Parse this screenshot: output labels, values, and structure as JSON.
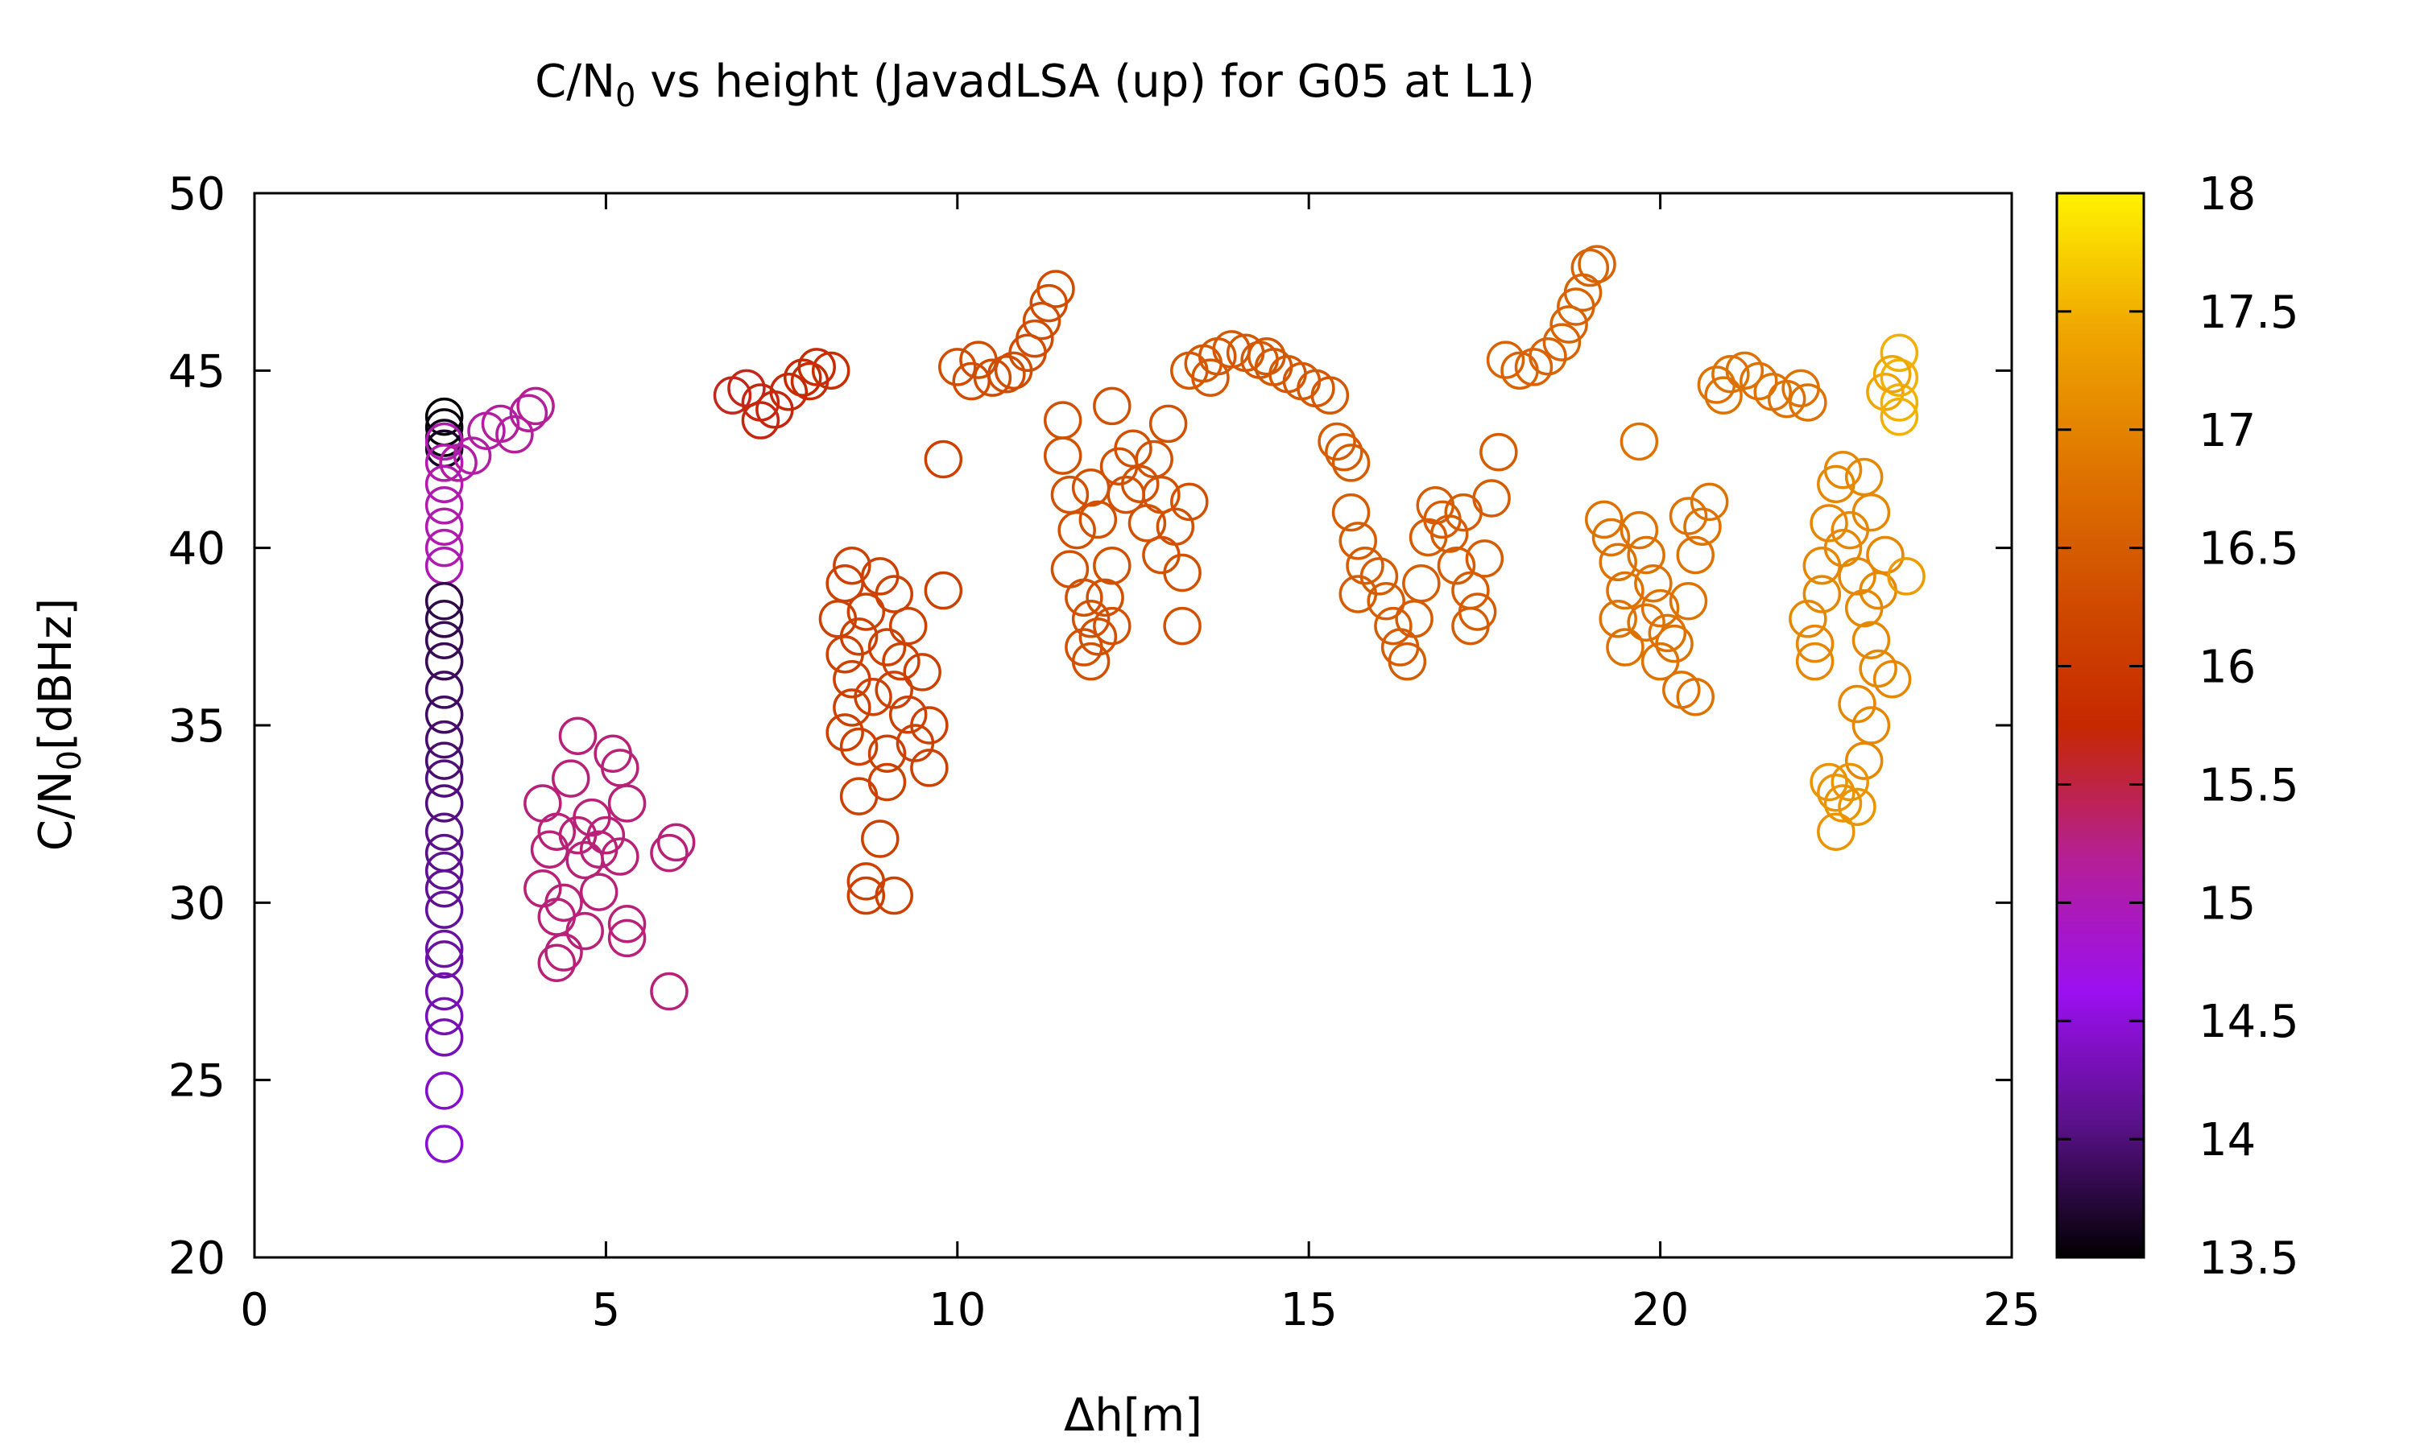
{
  "chart_data": {
    "type": "scatter",
    "title": "C/N",
    "title_sub": "0",
    "title_rest": " vs height (JavadLSA (up) for G05 at L1)",
    "xlabel": "Δh[m]",
    "ylabel": "C/N",
    "ylabel_sub": "0",
    "ylabel_rest": "[dBHz]",
    "xlim": [
      0,
      25
    ],
    "ylim": [
      20,
      50
    ],
    "xticks": [
      0,
      5,
      10,
      15,
      20,
      25
    ],
    "yticks": [
      20,
      25,
      30,
      35,
      40,
      45,
      50
    ],
    "marker": "open-circle",
    "grid": false,
    "colorbar": {
      "range": [
        13.5,
        18
      ],
      "ticks": [
        "13.5",
        "14",
        "14.5",
        "15",
        "15.5",
        "16",
        "16.5",
        "17",
        "17.5",
        "18"
      ],
      "colormap": [
        "#000000",
        "#5a1189",
        "#9b10f0",
        "#b51f96",
        "#c62800",
        "#d04e00",
        "#e07800",
        "#f0a800",
        "#fff200"
      ]
    },
    "points": [
      [
        2.7,
        43.7,
        13.5
      ],
      [
        2.7,
        43.4,
        13.55
      ],
      [
        2.7,
        43.1,
        13.6
      ],
      [
        2.7,
        42.8,
        13.65
      ],
      [
        2.7,
        40.0,
        15.05
      ],
      [
        2.7,
        40.6,
        15.05
      ],
      [
        2.7,
        41.2,
        15.05
      ],
      [
        2.7,
        41.8,
        15.05
      ],
      [
        2.7,
        42.4,
        15.05
      ],
      [
        2.7,
        43.0,
        15.05
      ],
      [
        2.7,
        39.5,
        15.0
      ],
      [
        2.7,
        38.5,
        13.8
      ],
      [
        2.7,
        38.0,
        13.8
      ],
      [
        2.7,
        37.4,
        13.85
      ],
      [
        2.7,
        36.8,
        13.85
      ],
      [
        2.7,
        36.0,
        13.9
      ],
      [
        2.7,
        35.3,
        13.9
      ],
      [
        2.7,
        34.6,
        13.95
      ],
      [
        2.7,
        34.0,
        13.95
      ],
      [
        2.7,
        33.5,
        14.0
      ],
      [
        2.7,
        32.8,
        14.0
      ],
      [
        2.7,
        32.0,
        14.05
      ],
      [
        2.7,
        31.4,
        14.05
      ],
      [
        2.7,
        30.9,
        14.1
      ],
      [
        2.7,
        30.4,
        14.1
      ],
      [
        2.7,
        29.8,
        14.15
      ],
      [
        2.7,
        28.7,
        14.2
      ],
      [
        2.7,
        28.4,
        14.2
      ],
      [
        2.7,
        27.5,
        14.25
      ],
      [
        2.7,
        26.8,
        14.3
      ],
      [
        2.7,
        26.2,
        14.3
      ],
      [
        2.7,
        24.7,
        14.4
      ],
      [
        2.7,
        23.2,
        14.45
      ],
      [
        2.9,
        42.4,
        15.1
      ],
      [
        3.1,
        42.6,
        15.1
      ],
      [
        3.3,
        43.3,
        15.1
      ],
      [
        3.5,
        43.5,
        15.15
      ],
      [
        3.7,
        43.2,
        15.15
      ],
      [
        3.9,
        43.8,
        15.15
      ],
      [
        4.0,
        44.0,
        15.2
      ],
      [
        4.6,
        34.7,
        15.3
      ],
      [
        4.5,
        33.5,
        15.3
      ],
      [
        5.1,
        34.2,
        15.3
      ],
      [
        5.2,
        33.8,
        15.3
      ],
      [
        4.1,
        32.8,
        15.3
      ],
      [
        4.3,
        32.0,
        15.3
      ],
      [
        4.8,
        32.4,
        15.3
      ],
      [
        5.0,
        31.9,
        15.3
      ],
      [
        5.3,
        32.8,
        15.3
      ],
      [
        4.2,
        31.5,
        15.3
      ],
      [
        4.7,
        31.2,
        15.3
      ],
      [
        5.2,
        31.3,
        15.3
      ],
      [
        4.1,
        30.4,
        15.3
      ],
      [
        4.4,
        30.0,
        15.3
      ],
      [
        4.9,
        30.3,
        15.3
      ],
      [
        4.3,
        29.6,
        15.3
      ],
      [
        4.7,
        29.2,
        15.3
      ],
      [
        5.3,
        29.4,
        15.3
      ],
      [
        5.3,
        29.0,
        15.3
      ],
      [
        4.4,
        28.6,
        15.3
      ],
      [
        4.3,
        28.3,
        15.3
      ],
      [
        5.9,
        31.4,
        15.3
      ],
      [
        6.0,
        31.7,
        15.3
      ],
      [
        5.9,
        27.5,
        15.3
      ],
      [
        4.9,
        31.5,
        15.3
      ],
      [
        4.6,
        31.9,
        15.3
      ],
      [
        6.8,
        44.3,
        15.65
      ],
      [
        7.0,
        44.5,
        15.65
      ],
      [
        7.2,
        44.1,
        15.7
      ],
      [
        7.2,
        43.6,
        15.7
      ],
      [
        7.4,
        43.9,
        15.7
      ],
      [
        7.6,
        44.4,
        15.75
      ],
      [
        7.8,
        44.8,
        15.75
      ],
      [
        8.0,
        45.1,
        15.8
      ],
      [
        7.9,
        44.7,
        15.8
      ],
      [
        8.2,
        45.0,
        15.85
      ],
      [
        8.3,
        38.0,
        16.1
      ],
      [
        8.4,
        39.0,
        16.1
      ],
      [
        8.5,
        39.5,
        16.1
      ],
      [
        8.7,
        38.2,
        16.1
      ],
      [
        8.9,
        39.2,
        16.1
      ],
      [
        9.1,
        38.7,
        16.1
      ],
      [
        8.4,
        37.0,
        16.1
      ],
      [
        8.6,
        37.5,
        16.1
      ],
      [
        9.0,
        37.2,
        16.1
      ],
      [
        9.3,
        37.8,
        16.1
      ],
      [
        9.5,
        36.5,
        16.1
      ],
      [
        8.5,
        36.3,
        16.1
      ],
      [
        8.8,
        35.8,
        16.1
      ],
      [
        9.1,
        36.0,
        16.1
      ],
      [
        9.3,
        35.3,
        16.1
      ],
      [
        9.6,
        35.0,
        16.1
      ],
      [
        8.4,
        34.8,
        16.1
      ],
      [
        8.6,
        34.4,
        16.1
      ],
      [
        9.0,
        34.2,
        16.1
      ],
      [
        9.4,
        34.5,
        16.1
      ],
      [
        9.6,
        33.8,
        16.1
      ],
      [
        8.6,
        33.0,
        16.1
      ],
      [
        9.0,
        33.4,
        16.1
      ],
      [
        8.9,
        31.8,
        16.1
      ],
      [
        8.7,
        30.6,
        16.1
      ],
      [
        8.7,
        30.2,
        16.1
      ],
      [
        9.1,
        30.2,
        16.1
      ],
      [
        9.8,
        38.8,
        16.1
      ],
      [
        9.8,
        42.5,
        16.1
      ],
      [
        8.5,
        35.5,
        16.1
      ],
      [
        9.2,
        36.8,
        16.1
      ],
      [
        10.0,
        45.1,
        16.3
      ],
      [
        10.3,
        45.3,
        16.3
      ],
      [
        10.5,
        44.8,
        16.3
      ],
      [
        10.8,
        45.0,
        16.3
      ],
      [
        11.0,
        45.5,
        16.3
      ],
      [
        11.1,
        45.9,
        16.3
      ],
      [
        11.2,
        46.4,
        16.3
      ],
      [
        11.3,
        46.9,
        16.3
      ],
      [
        11.4,
        47.3,
        16.3
      ],
      [
        10.2,
        44.7,
        16.3
      ],
      [
        10.7,
        44.9,
        16.3
      ],
      [
        11.5,
        43.6,
        16.35
      ],
      [
        11.5,
        42.6,
        16.35
      ],
      [
        11.6,
        41.5,
        16.35
      ],
      [
        11.7,
        40.5,
        16.35
      ],
      [
        11.6,
        39.4,
        16.35
      ],
      [
        11.8,
        38.6,
        16.35
      ],
      [
        11.9,
        38.0,
        16.35
      ],
      [
        12.0,
        37.5,
        16.35
      ],
      [
        11.8,
        37.2,
        16.35
      ],
      [
        11.9,
        36.8,
        16.35
      ],
      [
        12.2,
        37.8,
        16.35
      ],
      [
        12.1,
        38.6,
        16.35
      ],
      [
        12.2,
        39.5,
        16.35
      ],
      [
        12.0,
        40.8,
        16.35
      ],
      [
        12.4,
        41.5,
        16.35
      ],
      [
        12.3,
        42.3,
        16.35
      ],
      [
        12.5,
        42.8,
        16.35
      ],
      [
        12.6,
        41.8,
        16.35
      ],
      [
        12.8,
        42.5,
        16.35
      ],
      [
        12.9,
        41.5,
        16.35
      ],
      [
        12.7,
        40.7,
        16.35
      ],
      [
        12.9,
        39.8,
        16.35
      ],
      [
        13.1,
        40.6,
        16.35
      ],
      [
        13.2,
        39.3,
        16.35
      ],
      [
        13.2,
        37.8,
        16.35
      ],
      [
        13.3,
        41.3,
        16.35
      ],
      [
        13.0,
        43.5,
        16.35
      ],
      [
        12.2,
        44.0,
        16.35
      ],
      [
        11.9,
        41.7,
        16.35
      ],
      [
        13.3,
        45.0,
        16.45
      ],
      [
        13.5,
        45.2,
        16.45
      ],
      [
        13.7,
        45.4,
        16.45
      ],
      [
        13.9,
        45.6,
        16.45
      ],
      [
        14.1,
        45.5,
        16.45
      ],
      [
        14.3,
        45.3,
        16.45
      ],
      [
        14.5,
        45.1,
        16.45
      ],
      [
        14.7,
        44.9,
        16.45
      ],
      [
        14.9,
        44.7,
        16.45
      ],
      [
        15.1,
        44.5,
        16.45
      ],
      [
        15.3,
        44.3,
        16.45
      ],
      [
        13.6,
        44.8,
        16.45
      ],
      [
        14.4,
        45.4,
        16.45
      ],
      [
        15.4,
        43.0,
        16.5
      ],
      [
        15.5,
        42.7,
        16.5
      ],
      [
        15.6,
        42.4,
        16.5
      ],
      [
        15.6,
        41.0,
        16.5
      ],
      [
        15.7,
        40.2,
        16.5
      ],
      [
        15.8,
        39.5,
        16.5
      ],
      [
        15.7,
        38.7,
        16.5
      ],
      [
        16.0,
        39.2,
        16.5
      ],
      [
        16.1,
        38.5,
        16.5
      ],
      [
        16.2,
        37.8,
        16.5
      ],
      [
        16.3,
        37.2,
        16.5
      ],
      [
        16.4,
        36.8,
        16.5
      ],
      [
        16.5,
        38.0,
        16.5
      ],
      [
        16.6,
        39.0,
        16.5
      ],
      [
        16.7,
        40.3,
        16.5
      ],
      [
        16.8,
        41.2,
        16.5
      ],
      [
        17.0,
        40.4,
        16.5
      ],
      [
        17.1,
        39.5,
        16.5
      ],
      [
        17.2,
        41.0,
        16.5
      ],
      [
        17.3,
        38.8,
        16.5
      ],
      [
        17.4,
        38.2,
        16.5
      ],
      [
        17.5,
        39.7,
        16.5
      ],
      [
        17.6,
        41.4,
        16.5
      ],
      [
        17.7,
        42.7,
        16.5
      ],
      [
        17.3,
        37.8,
        16.5
      ],
      [
        16.9,
        40.8,
        16.5
      ],
      [
        17.8,
        45.3,
        16.6
      ],
      [
        18.0,
        45.0,
        16.6
      ],
      [
        18.2,
        45.1,
        16.6
      ],
      [
        18.4,
        45.4,
        16.6
      ],
      [
        18.6,
        45.8,
        16.6
      ],
      [
        18.7,
        46.3,
        16.6
      ],
      [
        18.8,
        46.8,
        16.6
      ],
      [
        18.9,
        47.2,
        16.6
      ],
      [
        19.0,
        47.9,
        16.6
      ],
      [
        19.1,
        48.0,
        16.6
      ],
      [
        19.2,
        40.8,
        16.8
      ],
      [
        19.3,
        40.3,
        16.8
      ],
      [
        19.4,
        39.6,
        16.8
      ],
      [
        19.5,
        38.8,
        16.8
      ],
      [
        19.4,
        38.0,
        16.8
      ],
      [
        19.5,
        37.2,
        16.8
      ],
      [
        19.7,
        40.5,
        16.8
      ],
      [
        19.8,
        39.8,
        16.8
      ],
      [
        19.9,
        39.0,
        16.8
      ],
      [
        20.0,
        38.3,
        16.8
      ],
      [
        20.1,
        37.6,
        16.8
      ],
      [
        20.0,
        36.8,
        16.8
      ],
      [
        20.2,
        37.3,
        16.8
      ],
      [
        20.3,
        36.0,
        16.8
      ],
      [
        20.4,
        38.5,
        16.8
      ],
      [
        20.5,
        39.8,
        16.8
      ],
      [
        20.6,
        40.6,
        16.8
      ],
      [
        20.7,
        41.3,
        16.8
      ],
      [
        19.7,
        43.0,
        16.8
      ],
      [
        20.4,
        40.9,
        16.8
      ],
      [
        20.5,
        35.8,
        16.8
      ],
      [
        19.8,
        37.9,
        16.8
      ],
      [
        20.8,
        44.6,
        16.8
      ],
      [
        21.0,
        44.9,
        16.8
      ],
      [
        21.2,
        45.0,
        16.8
      ],
      [
        21.4,
        44.7,
        16.8
      ],
      [
        21.6,
        44.4,
        16.8
      ],
      [
        21.8,
        44.2,
        16.8
      ],
      [
        22.0,
        44.5,
        16.8
      ],
      [
        22.1,
        44.1,
        16.8
      ],
      [
        20.9,
        44.3,
        16.8
      ],
      [
        22.1,
        38.0,
        17.05
      ],
      [
        22.2,
        37.3,
        17.05
      ],
      [
        22.3,
        38.7,
        17.05
      ],
      [
        22.3,
        39.5,
        17.05
      ],
      [
        22.4,
        40.7,
        17.05
      ],
      [
        22.5,
        41.8,
        17.05
      ],
      [
        22.6,
        42.2,
        17.05
      ],
      [
        22.7,
        40.5,
        17.05
      ],
      [
        22.8,
        39.2,
        17.05
      ],
      [
        22.9,
        38.3,
        17.05
      ],
      [
        23.0,
        37.4,
        17.05
      ],
      [
        23.1,
        36.6,
        17.05
      ],
      [
        23.0,
        35.0,
        17.05
      ],
      [
        22.9,
        34.0,
        17.05
      ],
      [
        22.8,
        35.6,
        17.05
      ],
      [
        22.9,
        42.0,
        17.05
      ],
      [
        23.0,
        41.0,
        17.05
      ],
      [
        23.2,
        39.8,
        17.05
      ],
      [
        23.3,
        36.3,
        17.05
      ],
      [
        22.2,
        36.8,
        17.05
      ],
      [
        22.6,
        40.0,
        17.05
      ],
      [
        23.1,
        38.8,
        17.05
      ],
      [
        22.4,
        33.4,
        17.2
      ],
      [
        22.5,
        33.1,
        17.2
      ],
      [
        22.6,
        32.8,
        17.2
      ],
      [
        22.7,
        33.4,
        17.2
      ],
      [
        22.5,
        32.0,
        17.2
      ],
      [
        22.8,
        32.7,
        17.2
      ],
      [
        23.2,
        44.4,
        17.4
      ],
      [
        23.4,
        45.5,
        17.5
      ],
      [
        23.4,
        44.8,
        17.5
      ],
      [
        23.4,
        44.1,
        17.5
      ],
      [
        23.4,
        43.7,
        17.5
      ],
      [
        23.3,
        44.9,
        17.4
      ],
      [
        23.5,
        39.2,
        17.3
      ]
    ]
  }
}
